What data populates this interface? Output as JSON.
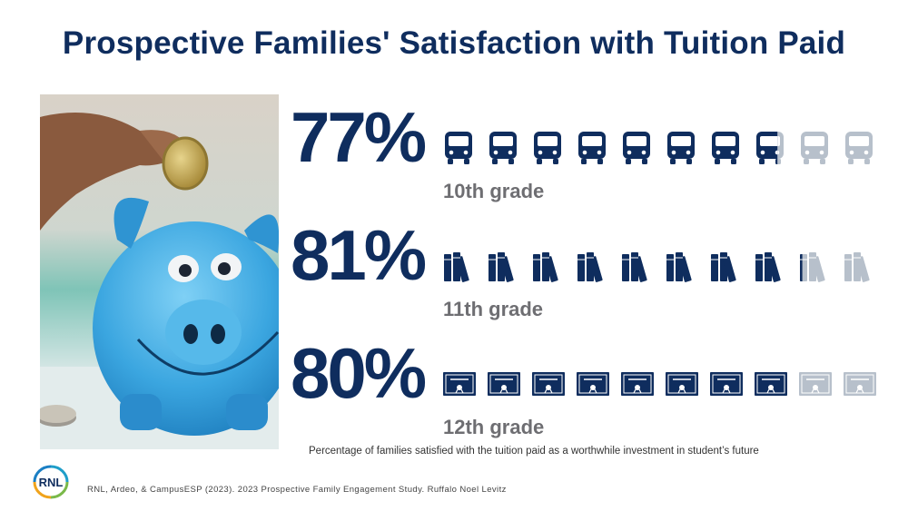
{
  "title": "Prospective Families' Satisfaction with Tuition Paid",
  "footnote": "Percentage of families satisfied with the tuition paid as a worthwhile investment in student’s future",
  "citation": "RNL, Ardeo, & CampusESP (2023). 2023 Prospective Family Engagement Study. Ruffalo Noel Levitz",
  "logo_text": "RNL",
  "colors": {
    "primary": "#0f2d5e",
    "muted": "#b7c0cb",
    "grade": "#6e6e72"
  },
  "chart_data": {
    "type": "pictograph",
    "icons_per_row": 10,
    "rows": [
      {
        "label": "10th grade",
        "value": 77,
        "value_text": "77%",
        "icon": "bus-icon"
      },
      {
        "label": "11th grade",
        "value": 81,
        "value_text": "81%",
        "icon": "books-icon"
      },
      {
        "label": "12th grade",
        "value": 80,
        "value_text": "80%",
        "icon": "diploma-icon"
      }
    ]
  }
}
